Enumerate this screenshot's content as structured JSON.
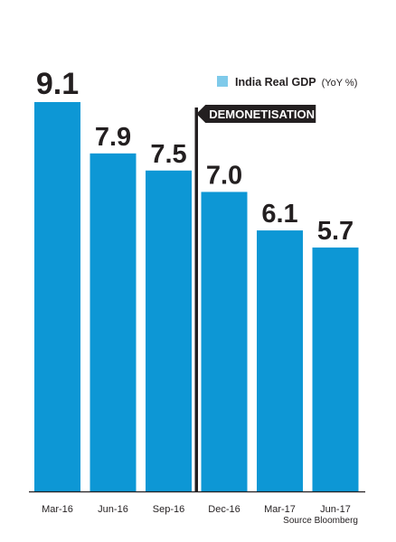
{
  "chart_data": {
    "type": "bar",
    "categories": [
      "Mar-16",
      "Jun-16",
      "Sep-16",
      "Dec-16",
      "Mar-17",
      "Jun-17"
    ],
    "values": [
      9.1,
      7.9,
      7.5,
      7.0,
      6.1,
      5.7
    ],
    "value_labels": [
      "9.1",
      "7.9",
      "7.5",
      "7.0",
      "6.1",
      "5.7"
    ],
    "ylim": [
      0,
      9.1
    ],
    "grid": false,
    "legend": {
      "label": "India Real GDP",
      "unit": "(YoY %)",
      "position": "top-right"
    },
    "annotation": {
      "label": "DEMONETISATION",
      "between": [
        "Sep-16",
        "Dec-16"
      ]
    },
    "source": "Source Bloomberg",
    "colors": {
      "bar": "#0d97d5",
      "legend_swatch": "#7fcaea",
      "text": "#231f20",
      "annotation_bg": "#231f20"
    }
  }
}
